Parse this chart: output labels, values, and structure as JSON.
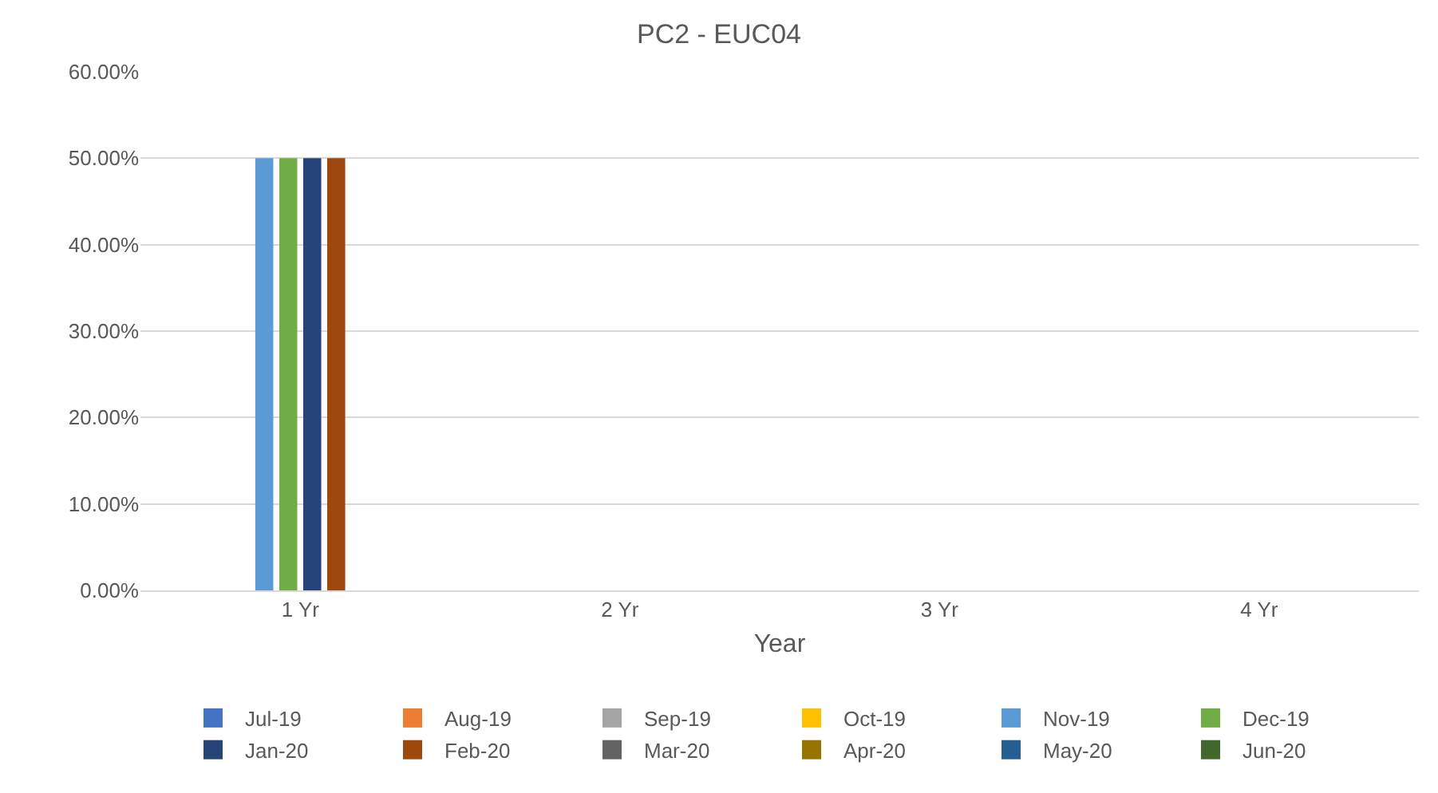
{
  "chart_data": {
    "type": "bar",
    "title": "PC2 - EUC04",
    "xlabel": "Year",
    "categories": [
      "1 Yr",
      "2 Yr",
      "3 Yr",
      "4 Yr"
    ],
    "series": [
      {
        "name": "Jul-19",
        "color": "#4472c4",
        "values": [
          0,
          0,
          0,
          0
        ]
      },
      {
        "name": "Aug-19",
        "color": "#ed7d31",
        "values": [
          0,
          0,
          0,
          0
        ]
      },
      {
        "name": "Sep-19",
        "color": "#a5a5a5",
        "values": [
          0,
          0,
          0,
          0
        ]
      },
      {
        "name": "Oct-19",
        "color": "#ffc000",
        "values": [
          0,
          0,
          0,
          0
        ]
      },
      {
        "name": "Nov-19",
        "color": "#5b9bd5",
        "values": [
          50,
          0,
          0,
          0
        ]
      },
      {
        "name": "Dec-19",
        "color": "#70ad47",
        "values": [
          50,
          0,
          0,
          0
        ]
      },
      {
        "name": "Jan-20",
        "color": "#264478",
        "values": [
          50,
          0,
          0,
          0
        ]
      },
      {
        "name": "Feb-20",
        "color": "#9e480e",
        "values": [
          50,
          0,
          0,
          0
        ]
      },
      {
        "name": "Mar-20",
        "color": "#636363",
        "values": [
          0,
          0,
          0,
          0
        ]
      },
      {
        "name": "Apr-20",
        "color": "#997300",
        "values": [
          0,
          0,
          0,
          0
        ]
      },
      {
        "name": "May-20",
        "color": "#255e91",
        "values": [
          0,
          0,
          0,
          0
        ]
      },
      {
        "name": "Jun-20",
        "color": "#43682b",
        "values": [
          0,
          0,
          0,
          0
        ]
      }
    ],
    "ylim": [
      0,
      60
    ],
    "yticks": [
      {
        "value": 0,
        "label": "0.00%"
      },
      {
        "value": 10,
        "label": "10.00%"
      },
      {
        "value": 20,
        "label": "20.00%"
      },
      {
        "value": 30,
        "label": "30.00%"
      },
      {
        "value": 40,
        "label": "40.00%"
      },
      {
        "value": 50,
        "label": "50.00%"
      },
      {
        "value": 60,
        "label": "60.00%"
      }
    ],
    "grid": "y",
    "legend": "bottom"
  }
}
